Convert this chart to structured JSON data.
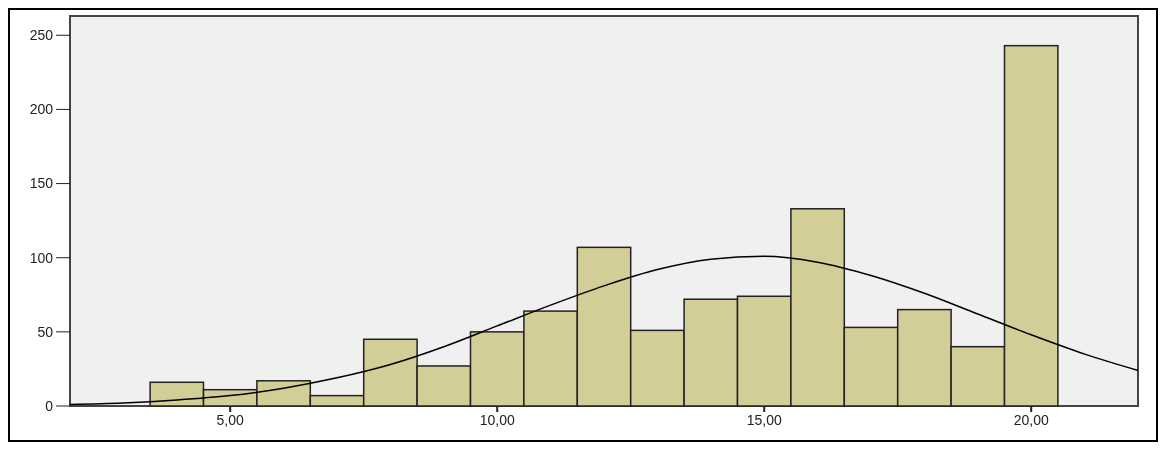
{
  "chart_data": {
    "type": "histogram",
    "bins": [
      3.5,
      4.5,
      5.5,
      6.5,
      7.5,
      8.5,
      9.5,
      10.5,
      11.5,
      12.5,
      13.5,
      14.5,
      15.5,
      16.5,
      17.5,
      18.5,
      19.5,
      20.5
    ],
    "values": [
      16,
      11,
      17,
      7,
      45,
      27,
      50,
      64,
      107,
      51,
      72,
      74,
      133,
      53,
      65,
      40,
      243
    ],
    "color": "#d3cd97",
    "series": [
      {
        "type": "line",
        "color": "#000000",
        "x": [
          2,
          3,
          4,
          5,
          6,
          7,
          8,
          9,
          10,
          11,
          12,
          13,
          14,
          15,
          16,
          17,
          18,
          19,
          20,
          21,
          22
        ],
        "values": [
          1,
          2,
          4,
          7,
          12,
          19,
          28,
          40,
          54,
          68,
          81,
          92,
          99,
          101,
          97,
          88,
          76,
          62,
          48,
          35,
          24
        ]
      }
    ],
    "xlim": [
      2,
      22
    ],
    "xticks": [
      {
        "value": 5,
        "label": "5,00"
      },
      {
        "value": 10,
        "label": "10,00"
      },
      {
        "value": 15,
        "label": "15,00"
      },
      {
        "value": 20,
        "label": "20,00"
      }
    ],
    "ylim": [
      0,
      263
    ],
    "yticks": [
      0,
      50,
      100,
      150,
      200,
      250
    ],
    "grid": false
  }
}
